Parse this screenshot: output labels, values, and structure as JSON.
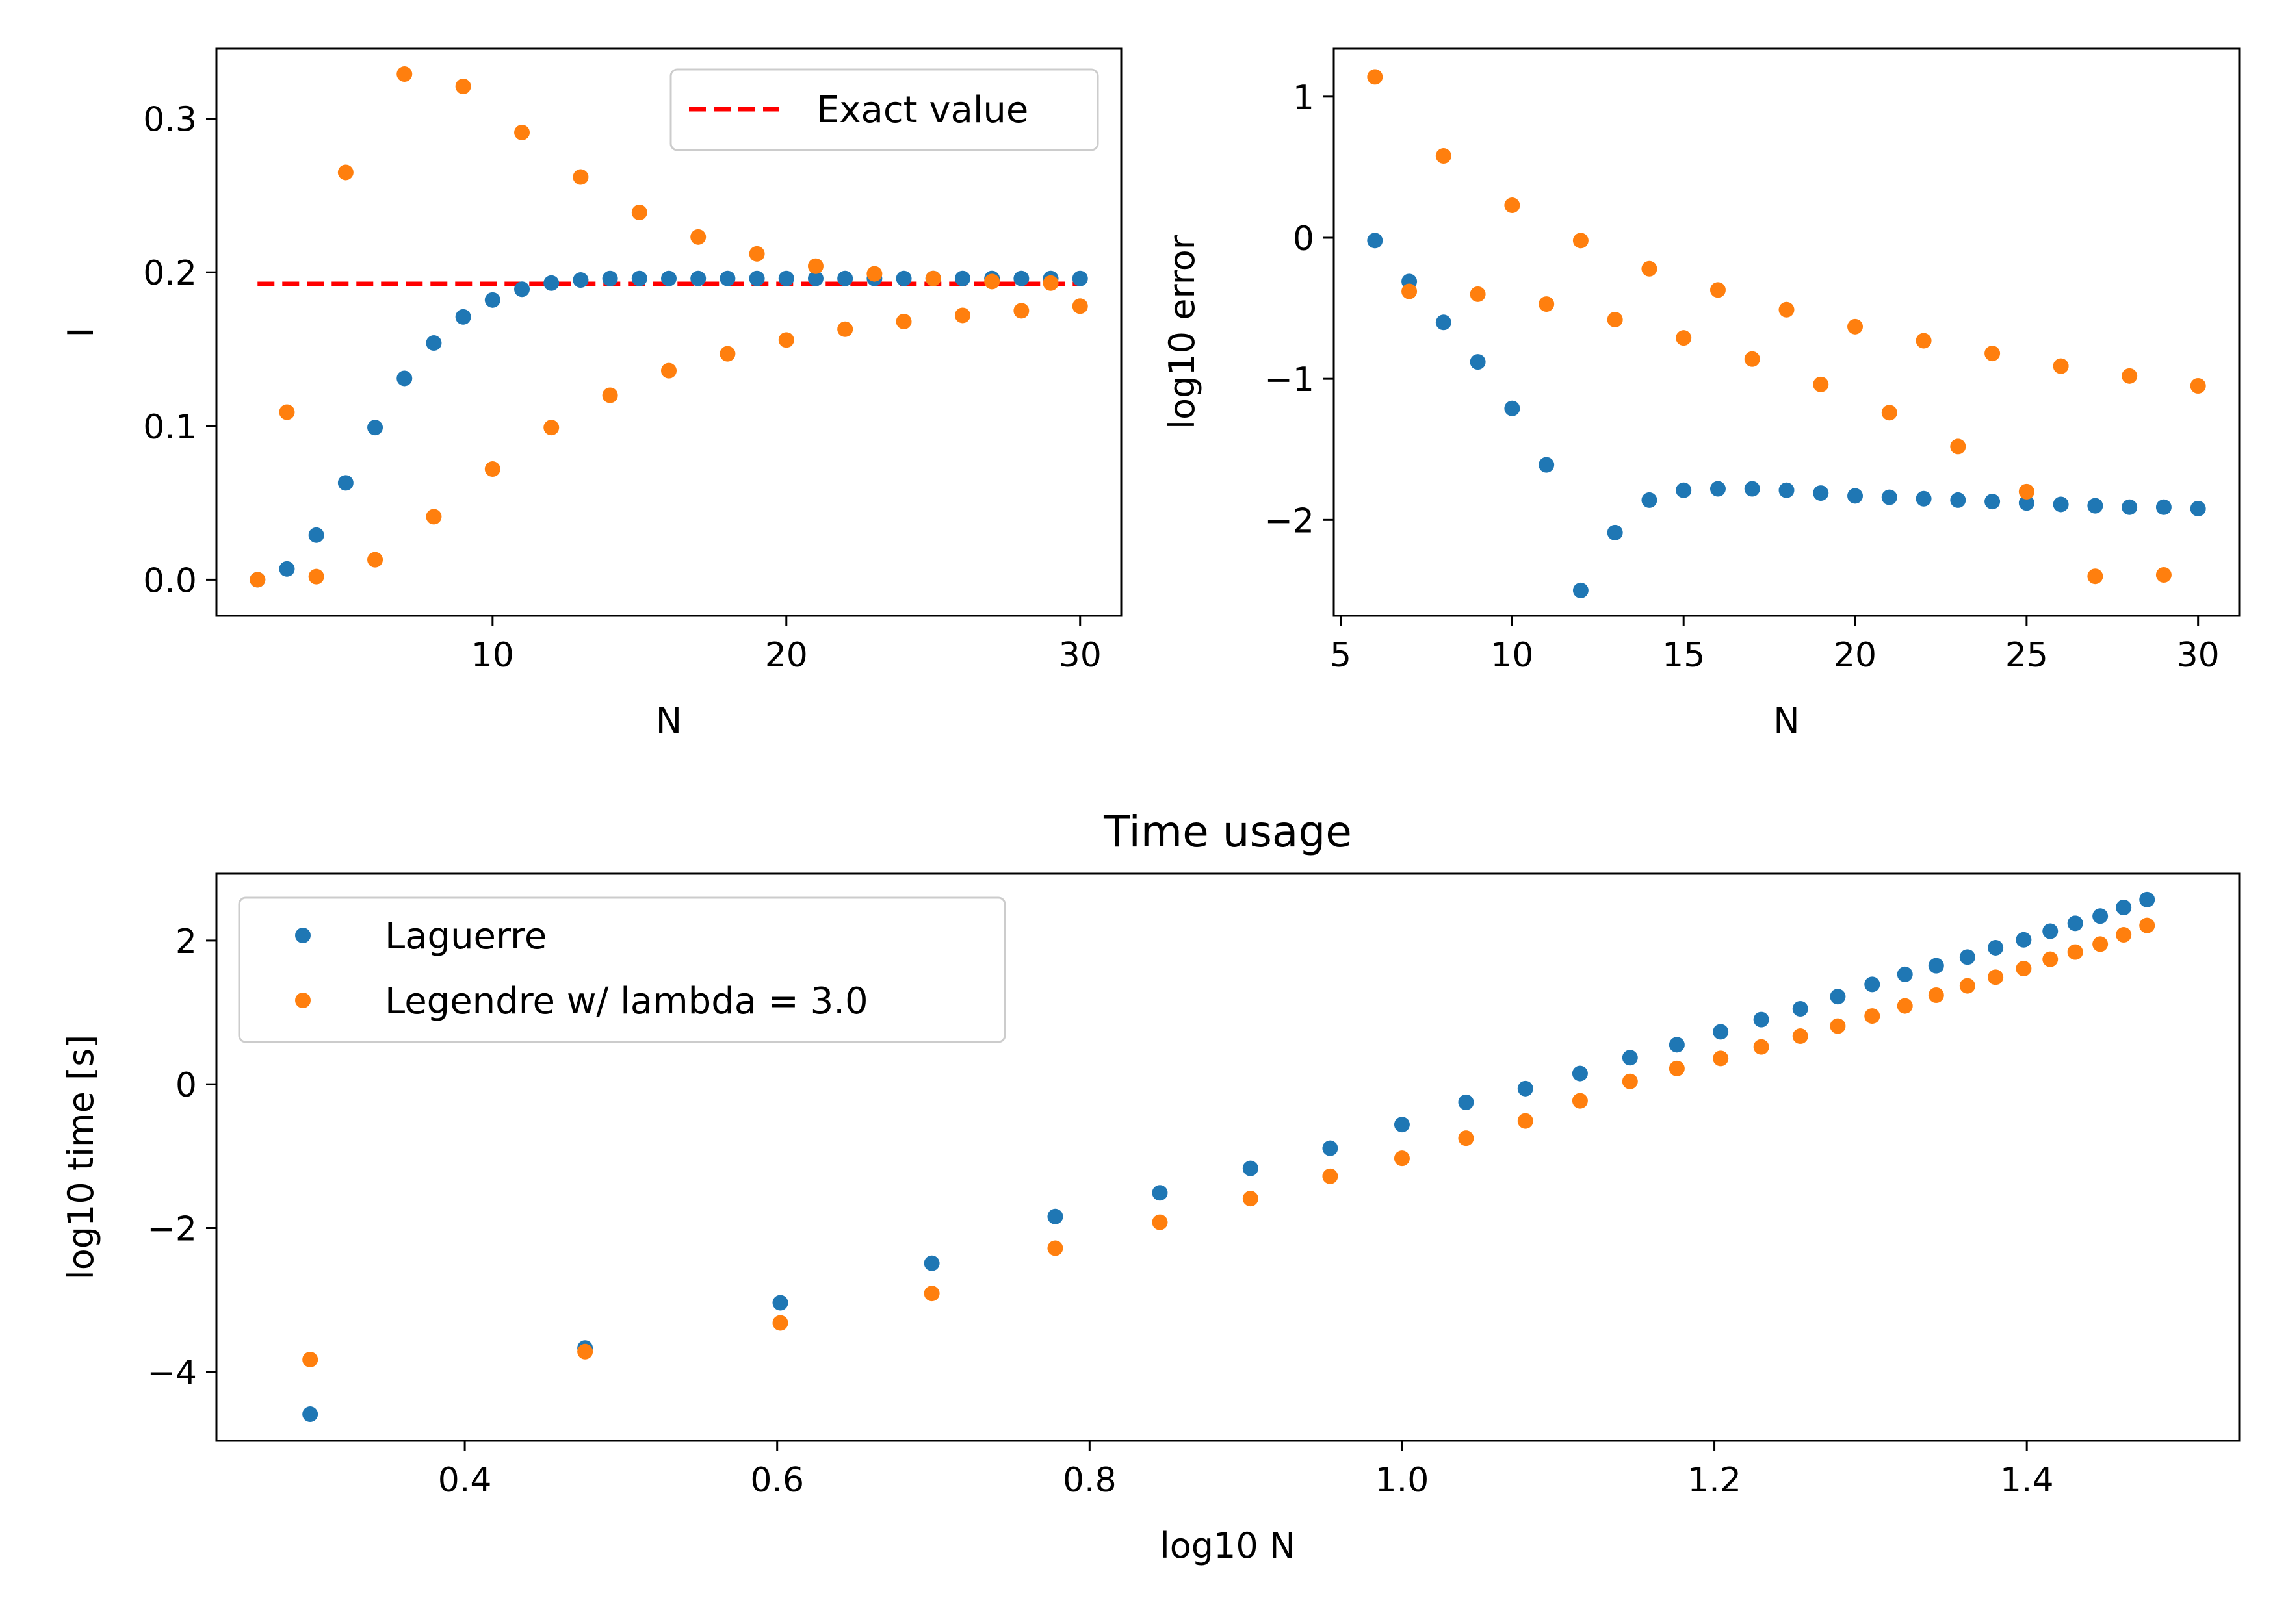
{
  "chart_data": [
    {
      "type": "scatter",
      "title": "",
      "xlabel": "N",
      "ylabel": "I",
      "xlim": [
        0.6,
        31.4
      ],
      "ylim": [
        -0.0235,
        0.3455
      ],
      "xticks": [
        10,
        20,
        30
      ],
      "xtick_labels": [
        "10",
        "20",
        "30"
      ],
      "yticks": [
        0.0,
        0.1,
        0.2,
        0.3
      ],
      "ytick_labels": [
        "0.0",
        "0.1",
        "0.2",
        "0.3"
      ],
      "grid": false,
      "legend_position": "upper right",
      "lines": [
        {
          "name": "Exact value",
          "x": [
            2,
            30
          ],
          "y": [
            0.1925,
            0.1925
          ],
          "color": "#ff0000",
          "style": "dashed"
        }
      ],
      "series": [
        {
          "color": "#1f77b4",
          "x": [
            2,
            3,
            4,
            5,
            6,
            7,
            8,
            9,
            10,
            11,
            12,
            13,
            14,
            15,
            16,
            17,
            18,
            19,
            20,
            21,
            22,
            23,
            24,
            25,
            26,
            27,
            28,
            29,
            30
          ],
          "y": [
            0.0,
            0.007,
            0.029,
            0.063,
            0.099,
            0.131,
            0.154,
            0.171,
            0.182,
            0.189,
            0.193,
            0.195,
            0.196,
            0.196,
            0.196,
            0.196,
            0.196,
            0.196,
            0.196,
            0.196,
            0.196,
            0.196,
            0.196,
            0.196,
            0.196,
            0.196,
            0.196,
            0.196,
            0.196
          ]
        },
        {
          "color": "#ff7f0e",
          "x": [
            2,
            3,
            4,
            5,
            6,
            7,
            8,
            9,
            10,
            11,
            12,
            13,
            14,
            15,
            16,
            17,
            18,
            19,
            20,
            21,
            22,
            23,
            24,
            25,
            26,
            27,
            28,
            29,
            30
          ],
          "y": [
            0.0,
            0.109,
            0.002,
            0.265,
            0.013,
            0.329,
            0.041,
            0.321,
            0.072,
            0.291,
            0.099,
            0.262,
            0.12,
            0.239,
            0.136,
            0.223,
            0.147,
            0.212,
            0.156,
            0.204,
            0.163,
            0.199,
            0.168,
            0.196,
            0.172,
            0.194,
            0.175,
            0.193,
            0.178
          ]
        }
      ]
    },
    {
      "type": "scatter",
      "title": "",
      "xlabel": "N",
      "ylabel": "log10 error",
      "xlim": [
        4.8,
        31.2
      ],
      "ylim": [
        -2.68,
        1.34
      ],
      "xticks": [
        5,
        10,
        15,
        20,
        25,
        30
      ],
      "xtick_labels": [
        "5",
        "10",
        "15",
        "20",
        "25",
        "30"
      ],
      "yticks": [
        -2,
        -1,
        0,
        1
      ],
      "ytick_labels": [
        "−2",
        "−1",
        "0",
        "1"
      ],
      "grid": false,
      "series": [
        {
          "color": "#1f77b4",
          "x": [
            6,
            7,
            8,
            9,
            10,
            11,
            12,
            13,
            14,
            15,
            16,
            17,
            18,
            19,
            20,
            21,
            22,
            23,
            24,
            25,
            26,
            27,
            28,
            29,
            30
          ],
          "y": [
            -0.02,
            -0.31,
            -0.6,
            -0.88,
            -1.21,
            -1.61,
            -2.5,
            -2.09,
            -1.86,
            -1.79,
            -1.78,
            -1.78,
            -1.79,
            -1.81,
            -1.83,
            -1.84,
            -1.85,
            -1.86,
            -1.87,
            -1.88,
            -1.89,
            -1.9,
            -1.91,
            -1.91,
            -1.92
          ]
        },
        {
          "color": "#ff7f0e",
          "x": [
            6,
            7,
            8,
            9,
            10,
            11,
            12,
            13,
            14,
            15,
            16,
            17,
            18,
            19,
            20,
            21,
            22,
            23,
            24,
            25,
            26,
            27,
            28,
            29,
            30
          ],
          "y": [
            1.14,
            -0.38,
            0.58,
            -0.4,
            0.23,
            -0.47,
            -0.02,
            -0.58,
            -0.22,
            -0.71,
            -0.37,
            -0.86,
            -0.51,
            -1.04,
            -0.63,
            -1.24,
            -0.73,
            -1.48,
            -0.82,
            -1.8,
            -0.91,
            -2.4,
            -0.98,
            -2.39,
            -1.05
          ]
        }
      ]
    },
    {
      "type": "scatter",
      "title": "Time usage",
      "xlabel": "log10 N",
      "ylabel": "log10 time [s]",
      "xlim": [
        0.241,
        1.536
      ],
      "ylim": [
        -4.96,
        2.93
      ],
      "xticks": [
        0.4,
        0.6,
        0.8,
        1.0,
        1.2,
        1.4
      ],
      "xtick_labels": [
        "0.4",
        "0.6",
        "0.8",
        "1.0",
        "1.2",
        "1.4"
      ],
      "yticks": [
        -4,
        -2,
        0,
        2
      ],
      "ytick_labels": [
        "−4",
        "−2",
        "0",
        "2"
      ],
      "grid": false,
      "legend_position": "upper left",
      "series": [
        {
          "name": "Laguerre",
          "color": "#1f77b4",
          "x": [
            0.301,
            0.477,
            0.602,
            0.699,
            0.778,
            0.845,
            0.903,
            0.954,
            1.0,
            1.041,
            1.079,
            1.114,
            1.146,
            1.176,
            1.204,
            1.23,
            1.255,
            1.279,
            1.301,
            1.322,
            1.342,
            1.362,
            1.38,
            1.398,
            1.415,
            1.431,
            1.447,
            1.462,
            1.477
          ],
          "y": [
            -4.59,
            -3.67,
            -3.04,
            -2.49,
            -1.84,
            -1.51,
            -1.17,
            -0.89,
            -0.56,
            -0.25,
            -0.06,
            0.15,
            0.37,
            0.55,
            0.73,
            0.9,
            1.05,
            1.22,
            1.39,
            1.53,
            1.65,
            1.77,
            1.9,
            2.01,
            2.13,
            2.24,
            2.34,
            2.46,
            2.57
          ]
        },
        {
          "name": "Legendre w/ lambda = 3.0",
          "color": "#ff7f0e",
          "x": [
            0.301,
            0.477,
            0.602,
            0.699,
            0.778,
            0.845,
            0.903,
            0.954,
            1.0,
            1.041,
            1.079,
            1.114,
            1.146,
            1.176,
            1.204,
            1.23,
            1.255,
            1.279,
            1.301,
            1.322,
            1.342,
            1.362,
            1.38,
            1.398,
            1.415,
            1.431,
            1.447,
            1.462,
            1.477
          ],
          "y": [
            -3.83,
            -3.72,
            -3.32,
            -2.91,
            -2.28,
            -1.92,
            -1.59,
            -1.28,
            -1.03,
            -0.75,
            -0.51,
            -0.23,
            0.04,
            0.22,
            0.36,
            0.52,
            0.67,
            0.81,
            0.95,
            1.09,
            1.24,
            1.37,
            1.49,
            1.61,
            1.74,
            1.84,
            1.95,
            2.08,
            2.21
          ]
        }
      ]
    }
  ]
}
